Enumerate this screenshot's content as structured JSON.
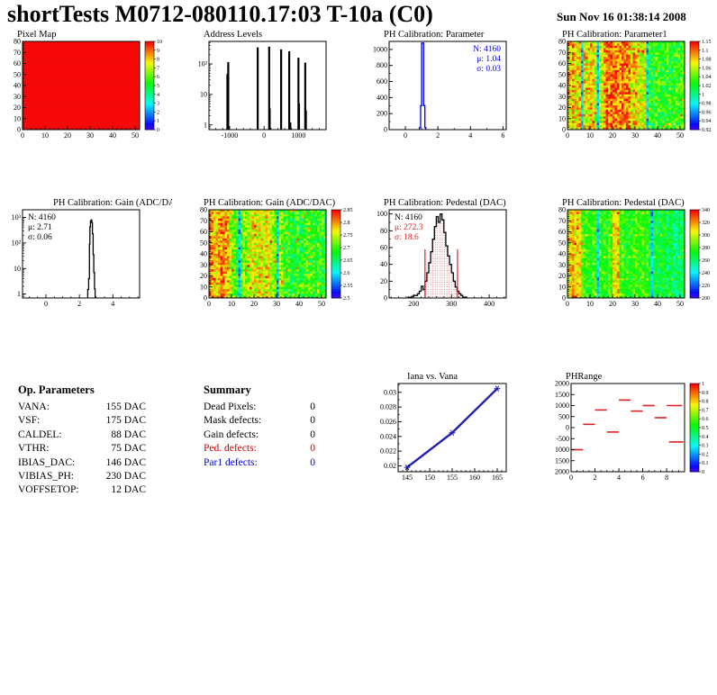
{
  "header": {
    "title": "shortTests M0712-080110.17:03 T-10a (C0)",
    "date": "Sun Nov 16 01:38:14 2008"
  },
  "accent_colors": {
    "hist_blue": "#0000dd",
    "root_red": "#e02020",
    "line_blue": "#2020b0"
  },
  "op_parameters": {
    "title": "Op. Parameters",
    "rows": [
      {
        "label": "VANA:",
        "value": "155 DAC"
      },
      {
        "label": "VSF:",
        "value": "175 DAC"
      },
      {
        "label": "CALDEL:",
        "value": "88 DAC"
      },
      {
        "label": "VTHR:",
        "value": "75 DAC"
      },
      {
        "label": "IBIAS_DAC:",
        "value": "146 DAC"
      },
      {
        "label": "VIBIAS_PH:",
        "value": "230 DAC"
      },
      {
        "label": "VOFFSETOP:",
        "value": "12 DAC"
      }
    ]
  },
  "summary": {
    "title": "Summary",
    "rows": [
      {
        "label": "Dead Pixels:",
        "value": "0",
        "color": "#000000"
      },
      {
        "label": "Mask defects:",
        "value": "0",
        "color": "#000000"
      },
      {
        "label": "Gain defects:",
        "value": "0",
        "color": "#000000"
      },
      {
        "label": "Ped. defects:",
        "value": "0",
        "color": "#cc0000"
      },
      {
        "label": "Par1 defects:",
        "value": "0",
        "color": "#0000cc"
      }
    ]
  },
  "chart_data": [
    {
      "id": "pixel-map",
      "type": "heatmap",
      "title": "Pixel Map",
      "xlim": [
        0,
        52
      ],
      "ylim": [
        0,
        80
      ],
      "xticks": [
        [
          0,
          "0"
        ],
        [
          10,
          "10"
        ],
        [
          20,
          "20"
        ],
        [
          30,
          "30"
        ],
        [
          40,
          "40"
        ],
        [
          50,
          "50"
        ]
      ],
      "xminor": 5,
      "yticks": [
        [
          0,
          "0"
        ],
        [
          10,
          "10"
        ],
        [
          20,
          "20"
        ],
        [
          30,
          "30"
        ],
        [
          40,
          "40"
        ],
        [
          50,
          "50"
        ],
        [
          60,
          "60"
        ],
        [
          70,
          "70"
        ],
        [
          80,
          "80"
        ]
      ],
      "yminor": 5,
      "fill": {
        "mode": "solid",
        "value": 1.0
      },
      "colorbar": {
        "labels": [
          "10",
          "9",
          "8",
          "7",
          "6",
          "5",
          "4",
          "3",
          "2",
          "1",
          "0"
        ]
      },
      "note": "all 52x80 pixels at maximum value 10 (uniform red)"
    },
    {
      "id": "address-levels",
      "type": "spikes",
      "title": "Address Levels",
      "xlim": [
        -1600,
        1800
      ],
      "log_y": true,
      "ylim": [
        0.7,
        550
      ],
      "xticks": [
        [
          -1000,
          "-1000"
        ],
        [
          0,
          "0"
        ],
        [
          1000,
          "1000"
        ]
      ],
      "xminor": 5,
      "yticks": [
        [
          1,
          "1"
        ],
        [
          10,
          "10"
        ],
        [
          100,
          "10²"
        ]
      ],
      "spikes": [
        [
          -1065,
          47
        ],
        [
          -1040,
          115
        ],
        [
          -185,
          350
        ],
        [
          148,
          370
        ],
        [
          163,
          3.5
        ],
        [
          495,
          300
        ],
        [
          730,
          260
        ],
        [
          762,
          1.2
        ],
        [
          998,
          160
        ],
        [
          1014,
          5
        ],
        [
          1195,
          110
        ],
        [
          1213,
          3
        ]
      ]
    },
    {
      "id": "ph-parameter",
      "type": "hist",
      "title": "PH Calibration: Parameter",
      "color": "#0000dd",
      "xlim": [
        -1,
        6.2
      ],
      "ylim": [
        0,
        1100
      ],
      "xticks": [
        [
          0,
          "0"
        ],
        [
          2,
          "2"
        ],
        [
          4,
          "4"
        ],
        [
          6,
          "6"
        ]
      ],
      "xminor": 2,
      "yticks": [
        [
          0,
          "0"
        ],
        [
          200,
          "200"
        ],
        [
          400,
          "400"
        ],
        [
          600,
          "600"
        ],
        [
          800,
          "800"
        ],
        [
          1000,
          "1000"
        ]
      ],
      "yminor": 2,
      "steps": [
        [
          0.86,
          0
        ],
        [
          0.86,
          25
        ],
        [
          0.94,
          25
        ],
        [
          0.94,
          300
        ],
        [
          1.0,
          300
        ],
        [
          1.0,
          1080
        ],
        [
          1.12,
          1080
        ],
        [
          1.12,
          300
        ],
        [
          1.2,
          300
        ],
        [
          1.2,
          25
        ],
        [
          1.26,
          25
        ],
        [
          1.26,
          0
        ]
      ],
      "stats": {
        "anchor": "right",
        "lines": [
          {
            "text": "N: 4160",
            "color": "#0000dd"
          },
          {
            "text": "μ: 1.04",
            "color": "#0000dd"
          },
          {
            "text": "σ: 0.03",
            "color": "#0000dd"
          }
        ]
      }
    },
    {
      "id": "ph-parameter1",
      "type": "heatmap",
      "title": "PH Calibration: Parameter1",
      "xlim": [
        0,
        52
      ],
      "ylim": [
        0,
        80
      ],
      "xticks": [
        [
          0,
          "0"
        ],
        [
          10,
          "10"
        ],
        [
          20,
          "20"
        ],
        [
          30,
          "30"
        ],
        [
          40,
          "40"
        ],
        [
          50,
          "50"
        ]
      ],
      "xminor": 5,
      "yticks": [
        [
          0,
          "0"
        ],
        [
          10,
          "10"
        ],
        [
          20,
          "20"
        ],
        [
          30,
          "30"
        ],
        [
          40,
          "40"
        ],
        [
          50,
          "50"
        ],
        [
          60,
          "60"
        ],
        [
          70,
          "70"
        ],
        [
          80,
          "80"
        ]
      ],
      "yminor": 5,
      "fill": {
        "mode": "noise",
        "seed": 11,
        "base": 0.66,
        "spread": 0.3,
        "cyan_cols": [
          6,
          13,
          35
        ],
        "hot_ranges": [
          [
            16,
            27
          ]
        ],
        "warm_ranges": [
          [
            0,
            11
          ],
          [
            28,
            33
          ]
        ],
        "cool_ranges": [
          [
            36,
            51
          ]
        ]
      },
      "colorbar": {
        "labels": [
          "1.15",
          "1.1",
          "1.08",
          "1.06",
          "1.04",
          "1.02",
          "1",
          "0.98",
          "0.96",
          "0.94",
          "0.92"
        ]
      }
    },
    {
      "id": "gain-hist",
      "type": "hist",
      "log_y": true,
      "title": "PH Calibration: Gain (ADC/DAC)",
      "color": "#000000",
      "tdx": 40,
      "xlim": [
        -1.4,
        5.6
      ],
      "ylim": [
        0.7,
        2000
      ],
      "xticks": [
        [
          0,
          "0"
        ],
        [
          2,
          "2"
        ],
        [
          4,
          "4"
        ]
      ],
      "xminor": 4,
      "yticks": [
        [
          1,
          "1"
        ],
        [
          10,
          "10"
        ],
        [
          100,
          "10²"
        ],
        [
          1000,
          "10³"
        ]
      ],
      "steps": [
        [
          2.5,
          0
        ],
        [
          2.5,
          1.5
        ],
        [
          2.55,
          1.5
        ],
        [
          2.55,
          4
        ],
        [
          2.6,
          4
        ],
        [
          2.6,
          90
        ],
        [
          2.63,
          90
        ],
        [
          2.63,
          420
        ],
        [
          2.66,
          420
        ],
        [
          2.66,
          700
        ],
        [
          2.7,
          700
        ],
        [
          2.7,
          800
        ],
        [
          2.74,
          800
        ],
        [
          2.74,
          620
        ],
        [
          2.78,
          620
        ],
        [
          2.78,
          230
        ],
        [
          2.82,
          230
        ],
        [
          2.82,
          35
        ],
        [
          2.86,
          35
        ],
        [
          2.86,
          7
        ],
        [
          2.9,
          7
        ],
        [
          2.9,
          1.6
        ],
        [
          2.94,
          1.6
        ],
        [
          2.94,
          0
        ]
      ],
      "stats": {
        "anchor": "left",
        "lines": [
          {
            "text": "N: 4160",
            "color": "#000000"
          },
          {
            "text": "μ: 2.71",
            "color": "#000000"
          },
          {
            "text": "σ: 0.06",
            "color": "#000000"
          }
        ]
      }
    },
    {
      "id": "gain-map",
      "type": "heatmap",
      "title": "PH Calibration: Gain (ADC/DAC)",
      "xlim": [
        0,
        52
      ],
      "ylim": [
        0,
        80
      ],
      "xticks": [
        [
          0,
          "0"
        ],
        [
          10,
          "10"
        ],
        [
          20,
          "20"
        ],
        [
          30,
          "30"
        ],
        [
          40,
          "40"
        ],
        [
          50,
          "50"
        ]
      ],
      "xminor": 5,
      "yticks": [
        [
          0,
          "0"
        ],
        [
          10,
          "10"
        ],
        [
          20,
          "20"
        ],
        [
          30,
          "30"
        ],
        [
          40,
          "40"
        ],
        [
          50,
          "50"
        ],
        [
          60,
          "60"
        ],
        [
          70,
          "70"
        ],
        [
          80,
          "80"
        ]
      ],
      "yminor": 5,
      "fill": {
        "mode": "noise",
        "seed": 23,
        "base": 0.62,
        "spread": 0.28,
        "cyan_cols": [
          13,
          30
        ],
        "hot_ranges": [
          [
            0,
            8
          ]
        ],
        "warm_ranges": [
          [
            17,
            26
          ]
        ],
        "cool_ranges": [
          [
            33,
            51
          ]
        ]
      },
      "colorbar": {
        "labels": [
          "2.85",
          "2.8",
          "2.75",
          "2.7",
          "2.65",
          "2.6",
          "2.55",
          "2.5"
        ]
      }
    },
    {
      "id": "pedestal-hist",
      "type": "hist",
      "title": "PH Calibration: Pedestal (DAC)",
      "color": "#000000",
      "xlim": [
        135,
        445
      ],
      "ylim": [
        0,
        105
      ],
      "xticks": [
        [
          200,
          "200"
        ],
        [
          300,
          "300"
        ],
        [
          400,
          "400"
        ]
      ],
      "xminor": 5,
      "yticks": [
        [
          0,
          "0"
        ],
        [
          20,
          "20"
        ],
        [
          40,
          "40"
        ],
        [
          60,
          "60"
        ],
        [
          80,
          "80"
        ],
        [
          100,
          "100"
        ]
      ],
      "yminor": 2,
      "bins": {
        "start": 185,
        "width": 5,
        "heights": [
          1,
          1,
          2,
          3,
          3,
          5,
          8,
          14,
          10,
          20,
          30,
          42,
          55,
          70,
          85,
          97,
          90,
          100,
          93,
          78,
          62,
          50,
          40,
          30,
          20,
          13,
          8,
          5,
          3,
          1,
          1
        ]
      },
      "fill_between": {
        "x0": 230,
        "x1": 316,
        "pattern": "red-dots"
      },
      "vlines": [
        {
          "x": 230,
          "y": 58,
          "color": "#e02020"
        },
        {
          "x": 316,
          "y": 58,
          "color": "#e02020"
        }
      ],
      "stats": {
        "anchor": "left",
        "lines": [
          {
            "text": "N: 4160",
            "color": "#000000"
          },
          {
            "text": "μ: 272.3",
            "color": "#e02020"
          },
          {
            "text": "σ: 18.6",
            "color": "#e02020"
          }
        ]
      }
    },
    {
      "id": "pedestal-map",
      "type": "heatmap",
      "title": "PH Calibration: Pedestal (DAC)",
      "xlim": [
        0,
        52
      ],
      "ylim": [
        0,
        80
      ],
      "xticks": [
        [
          0,
          "0"
        ],
        [
          10,
          "10"
        ],
        [
          20,
          "20"
        ],
        [
          30,
          "30"
        ],
        [
          40,
          "40"
        ],
        [
          50,
          "50"
        ]
      ],
      "xminor": 5,
      "yticks": [
        [
          0,
          "0"
        ],
        [
          10,
          "10"
        ],
        [
          20,
          "20"
        ],
        [
          30,
          "30"
        ],
        [
          40,
          "40"
        ],
        [
          50,
          "50"
        ],
        [
          60,
          "60"
        ],
        [
          70,
          "70"
        ],
        [
          80,
          "80"
        ]
      ],
      "yminor": 5,
      "fill": {
        "mode": "noise",
        "seed": 37,
        "base": 0.55,
        "spread": 0.22,
        "cyan_cols": [
          13,
          37
        ],
        "hot_ranges": [
          [
            0,
            5
          ],
          [
            20,
            22
          ]
        ],
        "warm_ranges": [],
        "cool_ranges": [
          [
            38,
            51
          ]
        ]
      },
      "colorbar": {
        "labels": [
          "340",
          "320",
          "300",
          "280",
          "260",
          "240",
          "220",
          "200"
        ]
      }
    },
    {
      "id": "iana-vs-vana",
      "type": "line",
      "title": "Iana vs. Vana",
      "color": "#2020b0",
      "tdx": 16,
      "fx0": 30,
      "xlim": [
        143,
        167
      ],
      "ylim": [
        0.0192,
        0.0312
      ],
      "xticks": [
        [
          145,
          "145"
        ],
        [
          150,
          "150"
        ],
        [
          155,
          "155"
        ],
        [
          160,
          "160"
        ],
        [
          165,
          "165"
        ]
      ],
      "xminor": 5,
      "yticks": [
        [
          0.02,
          "0.02"
        ],
        [
          0.022,
          "0.022"
        ],
        [
          0.024,
          "0.024"
        ],
        [
          0.026,
          "0.026"
        ],
        [
          0.028,
          "0.028"
        ],
        [
          0.03,
          "0.03"
        ]
      ],
      "yminor": 2,
      "points": [
        [
          145,
          0.0198
        ],
        [
          155,
          0.0245
        ],
        [
          165,
          0.0305
        ]
      ]
    },
    {
      "id": "ph-range",
      "type": "segments",
      "title": "PHRange",
      "color": "#e02020",
      "fx0": 24,
      "xlim": [
        0,
        9.5
      ],
      "ylim": [
        -2000,
        2000
      ],
      "xticks": [
        [
          0,
          "0"
        ],
        [
          2,
          "2"
        ],
        [
          4,
          "4"
        ],
        [
          6,
          "6"
        ],
        [
          8,
          "8"
        ]
      ],
      "xminor": 4,
      "yticks": [
        [
          2000,
          "2000"
        ],
        [
          1500,
          "1500"
        ],
        [
          1000,
          "1000"
        ],
        [
          500,
          "500"
        ],
        [
          0,
          "0"
        ],
        [
          -500,
          "-500"
        ],
        [
          -1000,
          "1000"
        ],
        [
          -1500,
          "1500"
        ],
        [
          -2000,
          "2000"
        ]
      ],
      "segments": [
        [
          0.05,
          1,
          -1000
        ],
        [
          1,
          2,
          150
        ],
        [
          2,
          3,
          800
        ],
        [
          3,
          4,
          -200
        ],
        [
          4,
          5,
          1250
        ],
        [
          5,
          6,
          750
        ],
        [
          6,
          7,
          1000
        ],
        [
          7,
          8,
          450
        ],
        [
          8,
          9.3,
          1000
        ],
        [
          8.2,
          9.4,
          -650
        ]
      ],
      "colorbar": {
        "labels": [
          "1",
          "0.9",
          "0.8",
          "0.7",
          "0.6",
          "0.5",
          "0.4",
          "0.3",
          "0.2",
          "0.1",
          "0"
        ]
      }
    }
  ]
}
